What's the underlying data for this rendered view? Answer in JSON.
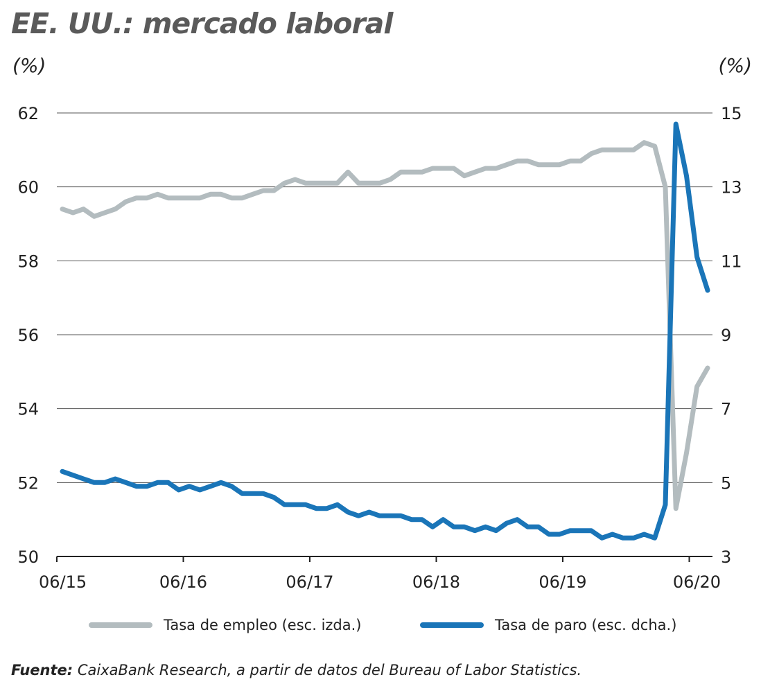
{
  "title": "EE. UU.: mercado laboral",
  "chart_data": {
    "type": "line",
    "title": "EE. UU.: mercado laboral",
    "y_left_unit": "(%)",
    "y_right_unit": "(%)",
    "y_left": {
      "min": 50,
      "max": 62,
      "ticks": [
        "50",
        "52",
        "54",
        "56",
        "58",
        "60",
        "62"
      ]
    },
    "y_right": {
      "min": 3,
      "max": 15,
      "ticks": [
        "3",
        "5",
        "7",
        "9",
        "11",
        "13",
        "15"
      ]
    },
    "x_ticks": [
      "06/15",
      "06/16",
      "06/17",
      "06/18",
      "06/19",
      "06/20"
    ],
    "x_range": [
      "06/15",
      "08/20"
    ],
    "grid": "horizontal",
    "legend_position": "bottom",
    "series": [
      {
        "name": "Tasa de empleo (esc. izda.)",
        "axis": "left",
        "color": "#b3bcbf",
        "values": [
          59.4,
          59.3,
          59.4,
          59.2,
          59.3,
          59.4,
          59.6,
          59.7,
          59.7,
          59.8,
          59.7,
          59.7,
          59.7,
          59.7,
          59.8,
          59.8,
          59.7,
          59.7,
          59.8,
          59.9,
          59.9,
          60.1,
          60.2,
          60.1,
          60.1,
          60.1,
          60.1,
          60.4,
          60.1,
          60.1,
          60.1,
          60.2,
          60.4,
          60.4,
          60.4,
          60.5,
          60.5,
          60.5,
          60.3,
          60.4,
          60.5,
          60.5,
          60.6,
          60.7,
          60.7,
          60.6,
          60.6,
          60.6,
          60.7,
          60.7,
          60.9,
          61.0,
          61.0,
          61.0,
          61.0,
          61.2,
          61.1,
          60.0,
          51.3,
          52.8,
          54.6,
          55.1
        ]
      },
      {
        "name": "Tasa de paro (esc. dcha.)",
        "axis": "right",
        "color": "#1a75b8",
        "values": [
          5.3,
          5.2,
          5.1,
          5.0,
          5.0,
          5.1,
          5.0,
          4.9,
          4.9,
          5.0,
          5.0,
          4.8,
          4.9,
          4.8,
          4.9,
          5.0,
          4.9,
          4.7,
          4.7,
          4.7,
          4.6,
          4.4,
          4.4,
          4.4,
          4.3,
          4.3,
          4.4,
          4.2,
          4.1,
          4.2,
          4.1,
          4.1,
          4.1,
          4.0,
          4.0,
          3.8,
          4.0,
          3.8,
          3.8,
          3.7,
          3.8,
          3.7,
          3.9,
          4.0,
          3.8,
          3.8,
          3.6,
          3.6,
          3.7,
          3.7,
          3.7,
          3.5,
          3.6,
          3.5,
          3.5,
          3.6,
          3.5,
          4.4,
          14.7,
          13.3,
          11.1,
          10.2
        ]
      }
    ]
  },
  "legend": [
    {
      "label": "Tasa de empleo (esc. izda.)",
      "color": "#b3bcbf"
    },
    {
      "label": "Tasa de paro (esc. dcha.)",
      "color": "#1a75b8"
    }
  ],
  "source": {
    "label": "Fuente:",
    "text": " CaixaBank Research, a partir de datos del Bureau of Labor Statistics."
  }
}
